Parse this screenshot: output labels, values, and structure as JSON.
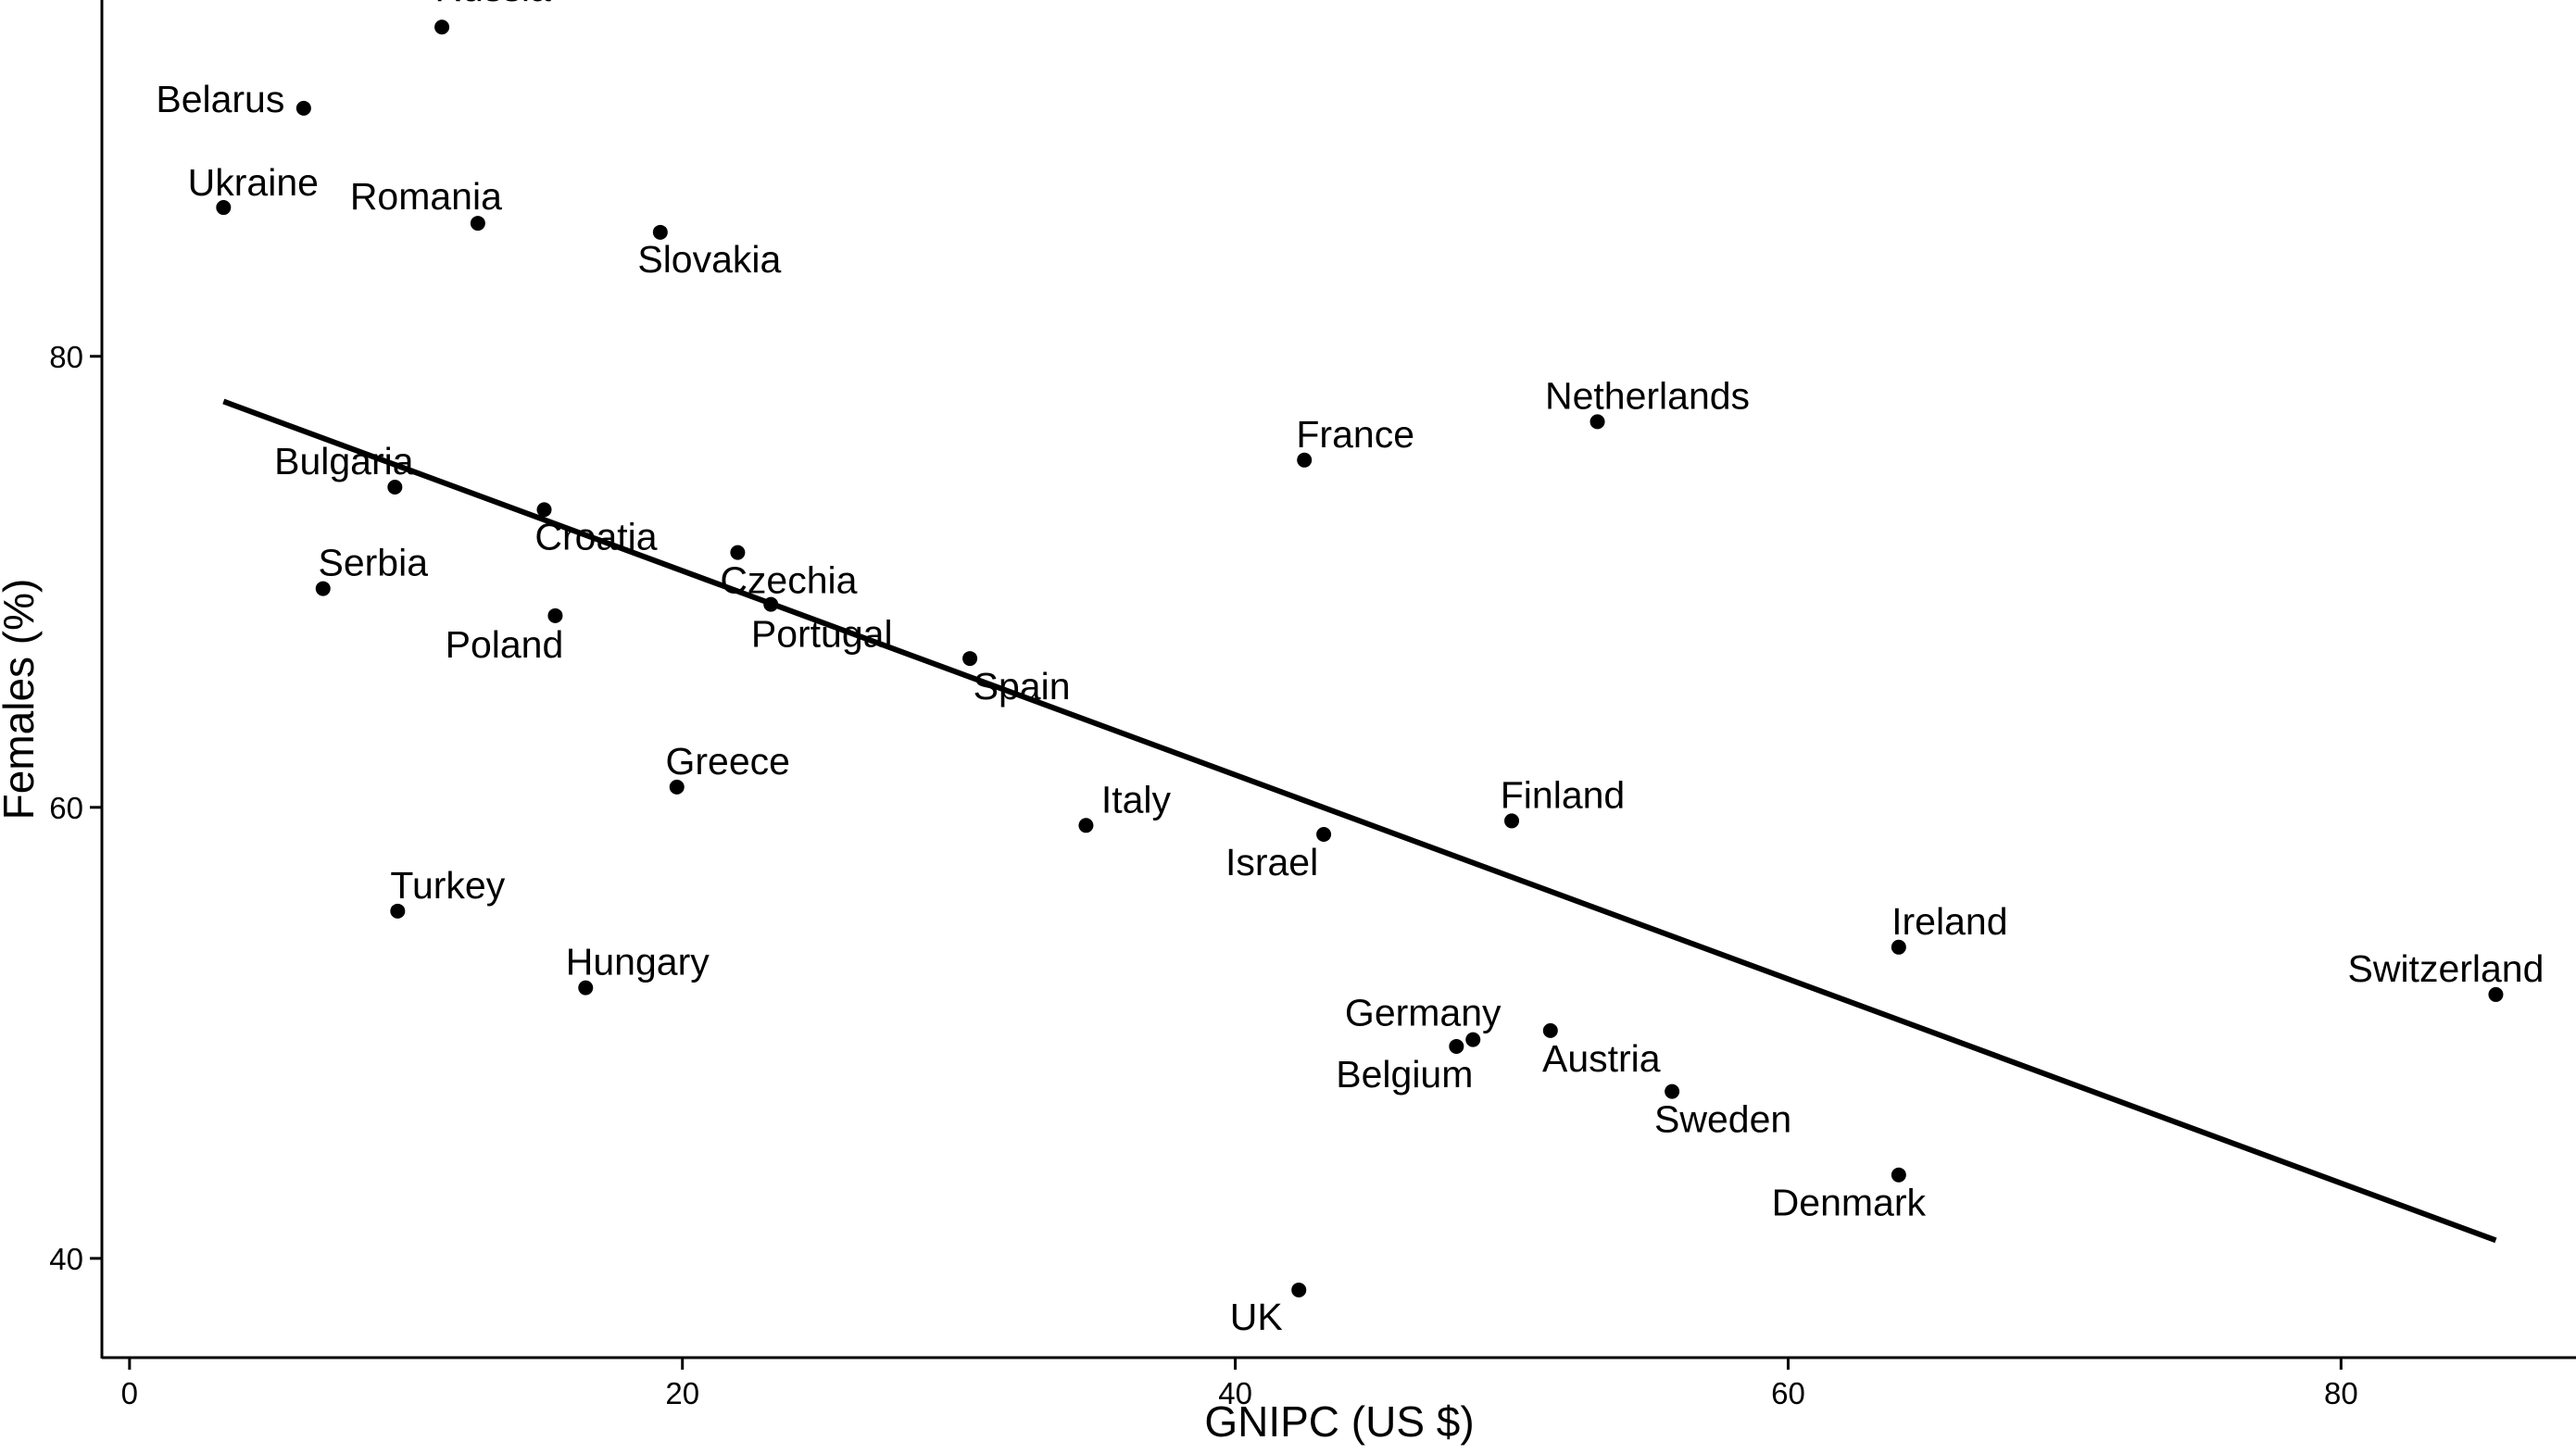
{
  "chart_data": {
    "type": "scatter",
    "title": "",
    "xlabel": "GNIPC (US $)",
    "ylabel": "Females (%)",
    "xlim": [
      -1,
      88.5
    ],
    "ylim": [
      35.6,
      95.8
    ],
    "x_ticks": [
      0,
      20,
      40,
      60,
      80
    ],
    "y_ticks": [
      40,
      60,
      80
    ],
    "grid": false,
    "legend": "none",
    "points": [
      {
        "label": "Russia",
        "x": 11.3,
        "y": 94.6
      },
      {
        "label": "Belarus",
        "x": 6.3,
        "y": 91.0
      },
      {
        "label": "Ukraine",
        "x": 3.4,
        "y": 86.6
      },
      {
        "label": "Romania",
        "x": 12.6,
        "y": 85.9
      },
      {
        "label": "Slovakia",
        "x": 19.2,
        "y": 85.5
      },
      {
        "label": "Netherlands",
        "x": 53.1,
        "y": 77.1
      },
      {
        "label": "France",
        "x": 42.5,
        "y": 75.4
      },
      {
        "label": "Bulgaria",
        "x": 9.6,
        "y": 74.2
      },
      {
        "label": "Croatia",
        "x": 15.0,
        "y": 73.2
      },
      {
        "label": "Czechia",
        "x": 22.0,
        "y": 71.3
      },
      {
        "label": "Serbia",
        "x": 7.0,
        "y": 69.7
      },
      {
        "label": "Portugal",
        "x": 23.2,
        "y": 69.0
      },
      {
        "label": "Poland",
        "x": 15.4,
        "y": 68.5
      },
      {
        "label": "Spain",
        "x": 30.4,
        "y": 66.6
      },
      {
        "label": "Greece",
        "x": 19.8,
        "y": 60.9
      },
      {
        "label": "Finland",
        "x": 50.0,
        "y": 59.4
      },
      {
        "label": "Italy",
        "x": 34.6,
        "y": 59.2
      },
      {
        "label": "Israel",
        "x": 43.2,
        "y": 58.8
      },
      {
        "label": "Turkey",
        "x": 9.7,
        "y": 55.4
      },
      {
        "label": "Ireland",
        "x": 64.0,
        "y": 53.8
      },
      {
        "label": "Hungary",
        "x": 16.5,
        "y": 52.0
      },
      {
        "label": "Switzerland",
        "x": 85.6,
        "y": 51.7
      },
      {
        "label": "Austria",
        "x": 51.4,
        "y": 50.1
      },
      {
        "label": "Germany",
        "x": 48.6,
        "y": 49.7
      },
      {
        "label": "Belgium",
        "x": 48.0,
        "y": 49.4
      },
      {
        "label": "Sweden",
        "x": 55.8,
        "y": 47.4
      },
      {
        "label": "Denmark",
        "x": 64.0,
        "y": 43.7
      },
      {
        "label": "UK",
        "x": 42.3,
        "y": 38.6
      }
    ],
    "trend_line": {
      "x": [
        3.4,
        85.6
      ],
      "y": [
        78.0,
        40.8
      ]
    }
  }
}
